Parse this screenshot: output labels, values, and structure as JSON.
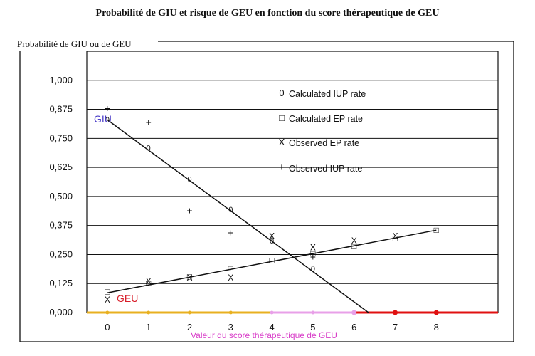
{
  "chart_data": {
    "type": "scatter",
    "title": "Probabilité de GIU et risque de GEU en fonction du score thérapeutique de GEU",
    "ylabel": "Probabilité de GIU ou de GEU",
    "xlabel": "Valeur du score thérapeutique de GEU",
    "x_ticks": [
      "0",
      "1",
      "2",
      "3",
      "4",
      "5",
      "6",
      "7",
      "8"
    ],
    "y_ticks": [
      "0,000",
      "0,125",
      "0,250",
      "0,375",
      "0,500",
      "0,625",
      "0,750",
      "0,875",
      "1,000"
    ],
    "xlim": [
      -0.5,
      9.5
    ],
    "ylim": [
      0,
      1.125
    ],
    "grid": "horizontal",
    "legend_position": "top-right",
    "series": [
      {
        "name": "Calculated  IUP  rate",
        "marker": "0",
        "points": [
          [
            0,
            0.83
          ],
          [
            1,
            0.71
          ],
          [
            2,
            0.575
          ],
          [
            3,
            0.445
          ],
          [
            4,
            0.31
          ],
          [
            5,
            0.19
          ]
        ],
        "fit_line": [
          [
            0,
            0.83
          ],
          [
            6.35,
            0.0
          ]
        ]
      },
      {
        "name": "Calculated  EP  rate",
        "marker": "□",
        "points": [
          [
            0,
            0.09
          ],
          [
            1,
            0.125
          ],
          [
            2,
            0.155
          ],
          [
            3,
            0.19
          ],
          [
            4,
            0.225
          ],
          [
            5,
            0.255
          ],
          [
            6,
            0.285
          ],
          [
            7,
            0.32
          ],
          [
            8,
            0.355
          ]
        ],
        "fit_line": [
          [
            0,
            0.085
          ],
          [
            8,
            0.355
          ]
        ]
      },
      {
        "name": "Observed  EP  rate",
        "marker": "X",
        "points": [
          [
            0,
            0.055
          ],
          [
            1,
            0.135
          ],
          [
            2,
            0.15
          ],
          [
            3,
            0.15
          ],
          [
            4,
            0.33
          ],
          [
            5,
            0.28
          ],
          [
            6,
            0.31
          ],
          [
            7,
            0.33
          ]
        ]
      },
      {
        "name": "Observed  IUP  rate",
        "marker": "+",
        "points": [
          [
            0,
            0.88
          ],
          [
            1,
            0.82
          ],
          [
            2,
            0.44
          ],
          [
            3,
            0.345
          ],
          [
            4,
            0.32
          ],
          [
            5,
            0.24
          ]
        ]
      }
    ],
    "annotations": [
      "GIU",
      "GEU"
    ],
    "colors": {
      "giu": "#4a3cc8",
      "geu": "#d81e2a",
      "xlabel": "#d83cc8",
      "axis_yellow": "#e8b020",
      "axis_pink": "#e8a0e8",
      "axis_red": "#e01010"
    }
  }
}
